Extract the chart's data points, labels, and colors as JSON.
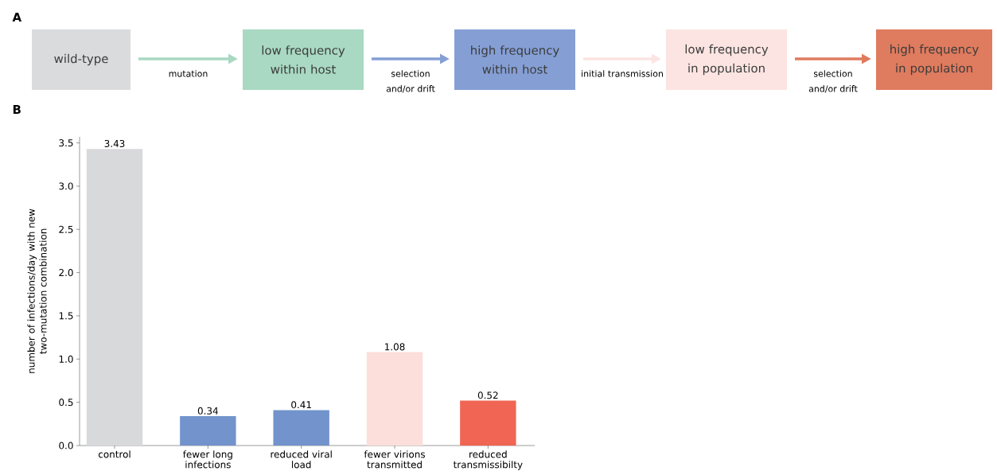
{
  "chart_data": [
    {
      "type": "other",
      "title": "A",
      "categories": [
        "wild-type",
        "low frequency within host",
        "high frequency within host",
        "low frequency in population",
        "high frequency in population"
      ],
      "colors": [
        "#dadbdd",
        "#a9d9c2",
        "#859fd5",
        "#fbe4e1",
        "#df7b5e"
      ],
      "annotations": [
        "mutation",
        "selection and/or drift",
        "initial transmission",
        "selection and/or drift"
      ]
    },
    {
      "type": "bar",
      "title": "B",
      "ylabel": "number of infections/day with new two-mutation combination",
      "categories": [
        "control",
        "fewer long infections",
        "reduced viral load",
        "fewer virions transmitted",
        "reduced transmissibilty"
      ],
      "values": [
        3.43,
        0.34,
        0.41,
        1.08,
        0.52
      ],
      "colors": [
        "#d8d9db",
        "#7293cb",
        "#7293cb",
        "#fcdeda",
        "#f06553"
      ],
      "ylim": [
        0,
        3.57
      ],
      "yticks": [
        {
          "value": 0,
          "label": "0.0"
        },
        0.5,
        {
          "value": 1,
          "label": "1.0"
        },
        1.5,
        {
          "value": 2,
          "label": "2.0"
        },
        2.5,
        {
          "value": 3,
          "label": "3.0"
        },
        3.5
      ],
      "data_labels": true
    }
  ]
}
